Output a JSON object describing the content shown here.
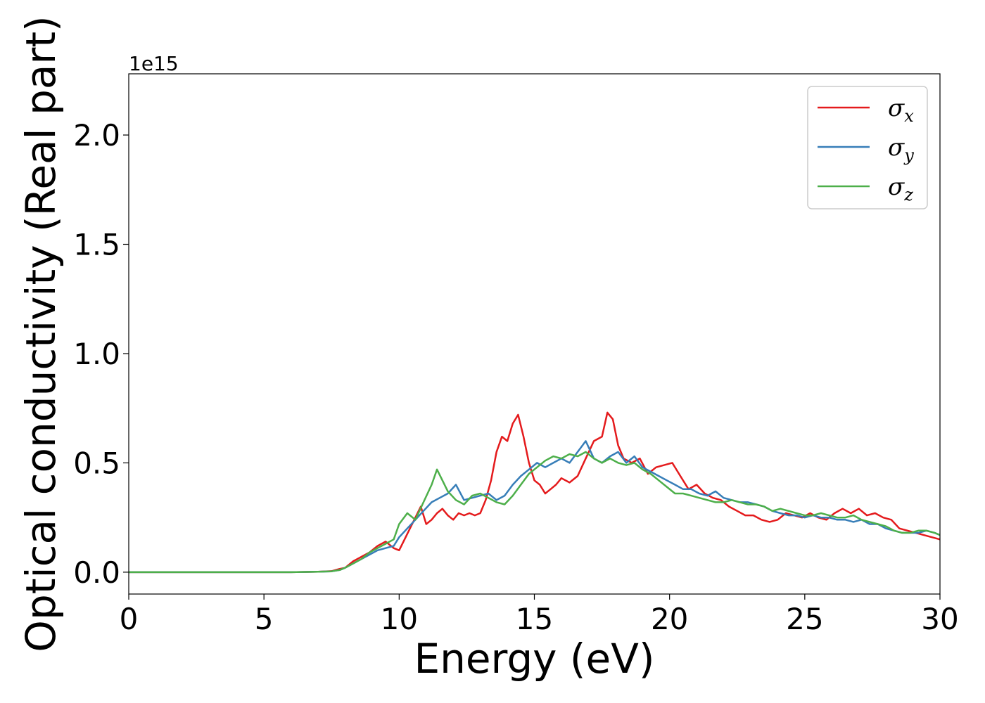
{
  "chart_data": {
    "type": "line",
    "xlabel": "Energy (eV)",
    "ylabel": "Optical conductivity (Real part)",
    "y_offset_label": "1e15",
    "xlim": [
      0,
      30
    ],
    "ylim": [
      -0.1,
      2.28
    ],
    "xticks": [
      0,
      5,
      10,
      15,
      20,
      25,
      30
    ],
    "xtick_labels": [
      "0",
      "5",
      "10",
      "15",
      "20",
      "25",
      "30"
    ],
    "yticks": [
      0.0,
      0.5,
      1.0,
      1.5,
      2.0
    ],
    "ytick_labels": [
      "0.0",
      "0.5",
      "1.0",
      "1.5",
      "2.0"
    ],
    "grid": false,
    "legend_position": "top-right",
    "series": [
      {
        "name": "σx",
        "color": "#e41a1c",
        "x": [
          0,
          6,
          7,
          7.5,
          7.8,
          8.0,
          8.3,
          8.6,
          8.9,
          9.2,
          9.5,
          9.8,
          10.0,
          10.2,
          10.4,
          10.6,
          10.8,
          11.0,
          11.2,
          11.4,
          11.6,
          11.8,
          12.0,
          12.2,
          12.4,
          12.6,
          12.8,
          13.0,
          13.2,
          13.4,
          13.6,
          13.8,
          14.0,
          14.2,
          14.4,
          14.6,
          14.8,
          15.0,
          15.2,
          15.4,
          15.6,
          15.8,
          16.0,
          16.3,
          16.6,
          16.9,
          17.2,
          17.5,
          17.7,
          17.9,
          18.1,
          18.3,
          18.6,
          18.9,
          19.2,
          19.5,
          19.8,
          20.1,
          20.4,
          20.7,
          21.0,
          21.3,
          21.6,
          21.9,
          22.2,
          22.5,
          22.8,
          23.1,
          23.4,
          23.7,
          24.0,
          24.3,
          24.6,
          24.9,
          25.2,
          25.5,
          25.8,
          26.1,
          26.4,
          26.7,
          27.0,
          27.3,
          27.6,
          27.9,
          28.2,
          28.5,
          28.8,
          29.1,
          29.4,
          29.7,
          30.0
        ],
        "values": [
          0,
          0,
          0.002,
          0.005,
          0.015,
          0.02,
          0.05,
          0.07,
          0.09,
          0.12,
          0.14,
          0.11,
          0.1,
          0.15,
          0.2,
          0.25,
          0.3,
          0.22,
          0.24,
          0.27,
          0.29,
          0.26,
          0.24,
          0.27,
          0.26,
          0.27,
          0.26,
          0.27,
          0.33,
          0.42,
          0.55,
          0.62,
          0.6,
          0.68,
          0.72,
          0.62,
          0.5,
          0.42,
          0.4,
          0.36,
          0.38,
          0.4,
          0.43,
          0.41,
          0.44,
          0.52,
          0.6,
          0.62,
          0.73,
          0.7,
          0.58,
          0.52,
          0.5,
          0.52,
          0.45,
          0.48,
          0.49,
          0.5,
          0.44,
          0.38,
          0.4,
          0.36,
          0.34,
          0.33,
          0.3,
          0.28,
          0.26,
          0.26,
          0.24,
          0.23,
          0.24,
          0.27,
          0.26,
          0.25,
          0.27,
          0.25,
          0.24,
          0.27,
          0.29,
          0.27,
          0.29,
          0.26,
          0.27,
          0.25,
          0.24,
          0.2,
          0.19,
          0.18,
          0.17,
          0.16,
          0.15
        ]
      },
      {
        "name": "σy",
        "color": "#377eb8",
        "x": [
          0,
          6,
          7,
          7.5,
          7.8,
          8.0,
          8.3,
          8.6,
          8.9,
          9.2,
          9.5,
          9.8,
          10.0,
          10.3,
          10.6,
          10.9,
          11.2,
          11.5,
          11.8,
          12.1,
          12.4,
          12.7,
          13.0,
          13.3,
          13.6,
          13.9,
          14.2,
          14.5,
          14.8,
          15.1,
          15.4,
          15.7,
          16.0,
          16.3,
          16.6,
          16.9,
          17.2,
          17.5,
          17.8,
          18.1,
          18.4,
          18.7,
          19.0,
          19.3,
          19.6,
          19.9,
          20.2,
          20.5,
          20.8,
          21.1,
          21.4,
          21.7,
          22.0,
          22.3,
          22.6,
          22.9,
          23.2,
          23.5,
          23.8,
          24.1,
          24.4,
          24.7,
          25.0,
          25.3,
          25.6,
          25.9,
          26.2,
          26.5,
          26.8,
          27.1,
          27.4,
          27.7,
          28.0,
          28.3,
          28.6,
          28.9,
          29.2,
          29.5,
          29.8,
          30.0
        ],
        "values": [
          0,
          0,
          0.002,
          0.004,
          0.01,
          0.02,
          0.04,
          0.06,
          0.08,
          0.1,
          0.11,
          0.12,
          0.16,
          0.2,
          0.24,
          0.28,
          0.32,
          0.34,
          0.36,
          0.4,
          0.33,
          0.34,
          0.35,
          0.36,
          0.33,
          0.35,
          0.4,
          0.44,
          0.47,
          0.5,
          0.48,
          0.5,
          0.52,
          0.5,
          0.55,
          0.6,
          0.52,
          0.5,
          0.53,
          0.55,
          0.5,
          0.53,
          0.48,
          0.46,
          0.44,
          0.42,
          0.4,
          0.38,
          0.38,
          0.36,
          0.35,
          0.37,
          0.34,
          0.33,
          0.32,
          0.32,
          0.31,
          0.3,
          0.28,
          0.27,
          0.26,
          0.26,
          0.25,
          0.26,
          0.25,
          0.25,
          0.24,
          0.24,
          0.23,
          0.24,
          0.22,
          0.22,
          0.2,
          0.19,
          0.18,
          0.18,
          0.18,
          0.19,
          0.18,
          0.17
        ]
      },
      {
        "name": "σz",
        "color": "#4daf4a",
        "x": [
          0,
          6,
          7,
          7.5,
          7.8,
          8.0,
          8.3,
          8.6,
          8.9,
          9.2,
          9.5,
          9.8,
          10.0,
          10.3,
          10.6,
          10.9,
          11.2,
          11.4,
          11.6,
          11.8,
          12.1,
          12.4,
          12.7,
          13.0,
          13.3,
          13.6,
          13.9,
          14.2,
          14.5,
          14.8,
          15.1,
          15.4,
          15.7,
          16.0,
          16.3,
          16.6,
          16.9,
          17.2,
          17.5,
          17.8,
          18.1,
          18.4,
          18.7,
          19.0,
          19.3,
          19.6,
          19.9,
          20.2,
          20.5,
          20.8,
          21.1,
          21.4,
          21.7,
          22.0,
          22.3,
          22.6,
          22.9,
          23.2,
          23.5,
          23.8,
          24.1,
          24.4,
          24.7,
          25.0,
          25.3,
          25.6,
          25.9,
          26.2,
          26.5,
          26.8,
          27.1,
          27.4,
          27.7,
          28.0,
          28.3,
          28.6,
          28.9,
          29.2,
          29.5,
          29.8,
          30.0
        ],
        "values": [
          0,
          0,
          0.002,
          0.004,
          0.01,
          0.02,
          0.04,
          0.06,
          0.09,
          0.11,
          0.13,
          0.15,
          0.22,
          0.27,
          0.24,
          0.32,
          0.4,
          0.47,
          0.42,
          0.37,
          0.33,
          0.31,
          0.35,
          0.36,
          0.34,
          0.32,
          0.31,
          0.35,
          0.4,
          0.45,
          0.48,
          0.51,
          0.53,
          0.52,
          0.54,
          0.53,
          0.55,
          0.52,
          0.5,
          0.52,
          0.5,
          0.49,
          0.5,
          0.47,
          0.45,
          0.42,
          0.39,
          0.36,
          0.36,
          0.35,
          0.34,
          0.33,
          0.32,
          0.32,
          0.33,
          0.32,
          0.31,
          0.31,
          0.3,
          0.28,
          0.29,
          0.28,
          0.27,
          0.26,
          0.26,
          0.27,
          0.26,
          0.25,
          0.25,
          0.26,
          0.24,
          0.23,
          0.22,
          0.21,
          0.19,
          0.18,
          0.18,
          0.19,
          0.19,
          0.18,
          0.17
        ]
      }
    ]
  }
}
